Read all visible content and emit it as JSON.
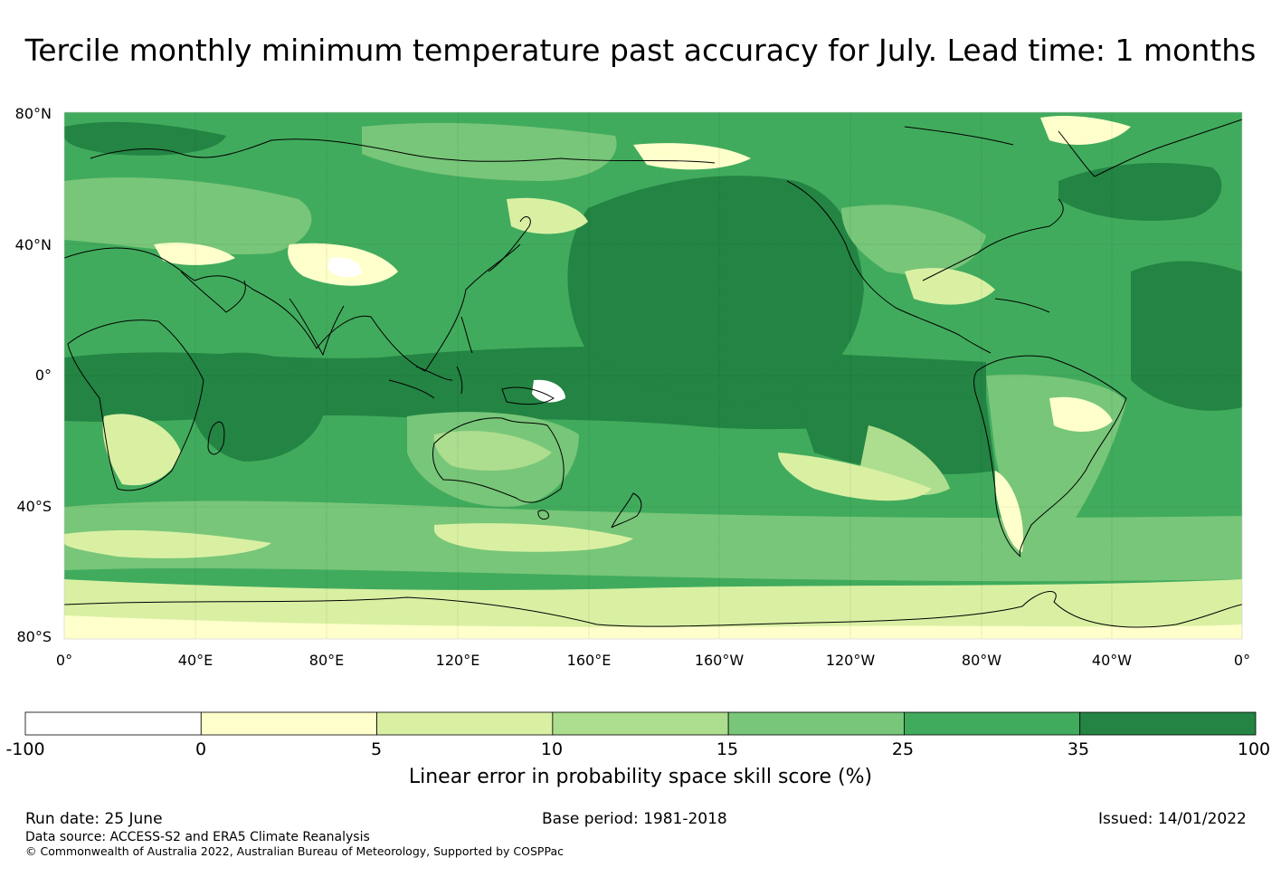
{
  "title": "Tercile monthly minimum temperature past accuracy for July. Lead time: 1 months",
  "map": {
    "lat_labels": [
      "80°N",
      "40°N",
      "0°",
      "40°S",
      "80°S"
    ],
    "lon_labels": [
      "0°",
      "40°E",
      "80°E",
      "120°E",
      "160°E",
      "160°W",
      "120°W",
      "80°W",
      "40°W",
      "0°"
    ],
    "colors": {
      "ocean_dark": "#238443",
      "mid_green": "#41ab5d",
      "light_green": "#78c679",
      "pale_green": "#addd8e",
      "yellow_green": "#d9f0a3",
      "cream": "#ffffcc",
      "coast": "#000000"
    }
  },
  "colorbar": {
    "ticks": [
      "-100",
      "0",
      "5",
      "10",
      "15",
      "25",
      "35",
      "100"
    ],
    "colors": [
      "#ffffff",
      "#ffffcc",
      "#d9f0a3",
      "#addd8e",
      "#78c679",
      "#41ab5d",
      "#238443"
    ],
    "title": "Linear error in probability space skill score (%)"
  },
  "footer": {
    "run_date": "Run date: 25 June",
    "base_period": "Base period: 1981-2018",
    "issued": "Issued: 14/01/2022",
    "data_source": "Data source: ACCESS-S2 and ERA5 Climate Reanalysis",
    "copyright": "© Commonwealth of Australia 2022, Australian Bureau of Meteorology, Supported by COSPPac"
  }
}
